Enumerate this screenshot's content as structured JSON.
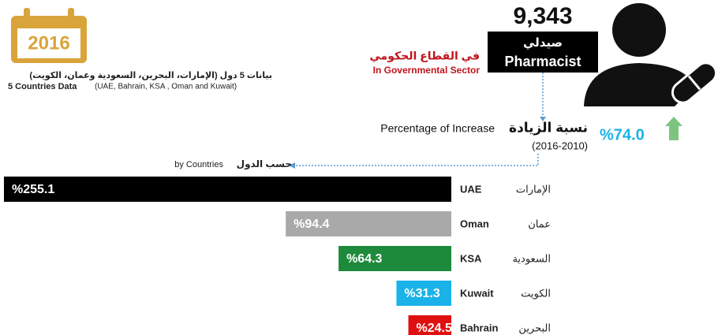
{
  "header": {
    "year": "2016",
    "data_note_ar": "بيانات 5 دول (الإمارات، البحرين، السعودية وعمان، الكويت)",
    "data_note_en": "5 Countries Data",
    "data_note_en_detail": "(UAE, Bahrain, KSA , Oman and Kuwait)",
    "count": "9,343",
    "role_ar": "صيدلي",
    "role_en": "Pharmacist",
    "sector_ar": "في القطاع الحكومي",
    "sector_en": "In Governmental Sector",
    "increase_ar": "نسبة الزيادة",
    "increase_en": "Percentage of Increase",
    "period": "(2016-2010)",
    "total_increase": "%74.0",
    "by_countries_ar": "حسب الدول",
    "by_countries_en": "by Countries"
  },
  "chart_data": {
    "type": "bar",
    "orientation": "horizontal",
    "categories": [
      "UAE",
      "Oman",
      "KSA",
      "Kuwait",
      "Bahrain"
    ],
    "categories_ar": [
      "الإمارات",
      "عمان",
      "السعودية",
      "الكويت",
      "البحرين"
    ],
    "values": [
      255.1,
      94.4,
      64.3,
      31.3,
      24.5
    ],
    "value_labels": [
      "%255.1",
      "%94.4",
      "%64.3",
      "%31.3",
      "%24.5"
    ],
    "colors": [
      "#000000",
      "#a9a9a9",
      "#1e8a3c",
      "#1ab2e8",
      "#e01010"
    ]
  }
}
